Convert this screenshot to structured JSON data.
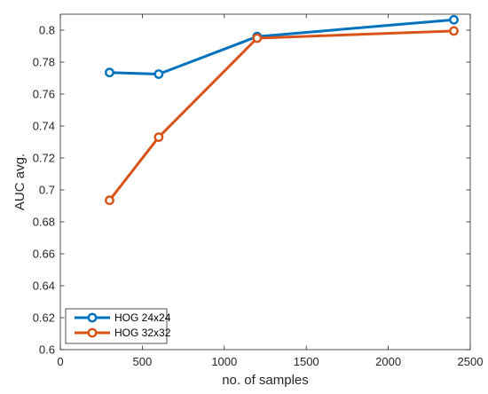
{
  "chart_data": {
    "type": "line",
    "title": "",
    "xlabel": "no. of samples",
    "ylabel": "AUC avg.",
    "xlim": [
      0,
      2500
    ],
    "ylim": [
      0.6,
      0.81
    ],
    "xticks": [
      0,
      500,
      1000,
      1500,
      2000,
      2500
    ],
    "yticks": [
      0.6,
      0.62,
      0.64,
      0.66,
      0.68,
      0.7,
      0.72,
      0.74,
      0.76,
      0.78,
      0.8
    ],
    "xtick_labels": [
      "0",
      "500",
      "1000",
      "1500",
      "2000",
      "2500"
    ],
    "ytick_labels": [
      "0.6",
      "0.62",
      "0.64",
      "0.66",
      "0.68",
      "0.7",
      "0.72",
      "0.74",
      "0.76",
      "0.78",
      "0.8"
    ],
    "grid": false,
    "legend_position": "bottom-left",
    "series": [
      {
        "name": "HOG 24x24",
        "color": "#0072BD",
        "x": [
          300,
          600,
          1200,
          2400
        ],
        "values": [
          0.7735,
          0.7725,
          0.796,
          0.8065
        ]
      },
      {
        "name": "HOG 32x32",
        "color": "#D95319",
        "x": [
          300,
          600,
          1200,
          2400
        ],
        "values": [
          0.6935,
          0.733,
          0.795,
          0.7995
        ]
      }
    ]
  }
}
